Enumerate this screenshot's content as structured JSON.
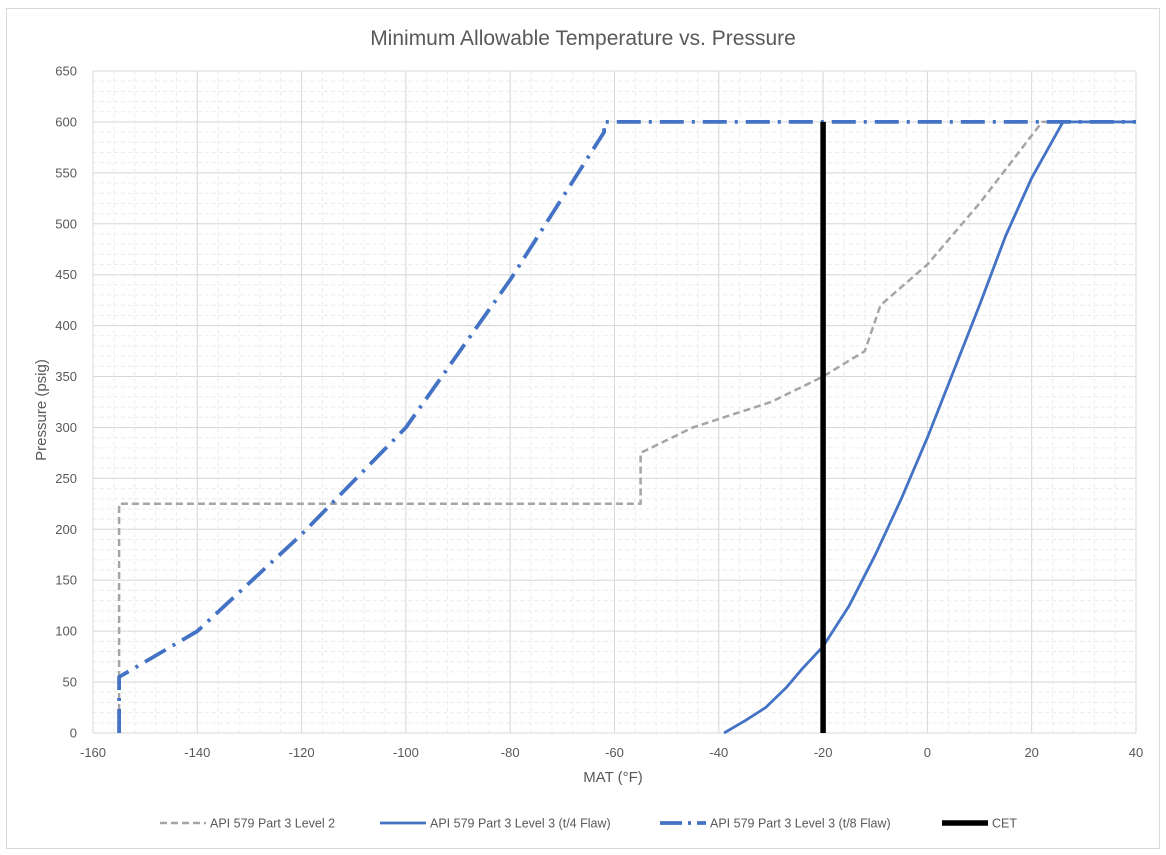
{
  "chart_data": {
    "type": "line",
    "title": "Minimum Allowable Temperature vs. Pressure",
    "xlabel": "MAT (°F)",
    "ylabel": "Pressure (psig)",
    "xlim": [
      -160,
      40
    ],
    "ylim": [
      0,
      650
    ],
    "xticks": [
      -160,
      -140,
      -120,
      -100,
      -80,
      -60,
      -40,
      -20,
      0,
      20,
      40
    ],
    "yticks": [
      0,
      50,
      100,
      150,
      200,
      250,
      300,
      350,
      400,
      450,
      500,
      550,
      600,
      650
    ],
    "grid": true,
    "legend_position": "bottom",
    "series": [
      {
        "name": "API 579 Part 3 Level 2",
        "color": "#a5a5a5",
        "style": "dashed",
        "x": [
          -155,
          -155,
          -155,
          -55,
          -55,
          -45,
          -30,
          -20,
          -12,
          -9,
          0,
          10,
          22,
          40
        ],
        "y": [
          0,
          50,
          225,
          225,
          275,
          300,
          325,
          350,
          375,
          420,
          460,
          520,
          600,
          600
        ]
      },
      {
        "name": "API 579 Part 3 Level 3 (t/4 Flaw)",
        "color": "#4472c4",
        "style": "solid",
        "x": [
          -39,
          -35,
          -31,
          -27,
          -24,
          -20,
          -15,
          -10,
          -5,
          0,
          5,
          10,
          15,
          20,
          26,
          40
        ],
        "y": [
          0,
          12,
          25,
          45,
          63,
          85,
          125,
          175,
          230,
          290,
          355,
          420,
          488,
          545,
          600,
          600
        ]
      },
      {
        "name": "API 579 Part 3 Level 3 (t/8 Flaw)",
        "color": "#4472c4",
        "style": "dashdot",
        "x": [
          -155,
          -155,
          -155,
          -140,
          -120,
          -100,
          -80,
          -62,
          -62,
          40
        ],
        "y": [
          0,
          40,
          55,
          100,
          195,
          300,
          445,
          590,
          600,
          600
        ]
      },
      {
        "name": "CET",
        "color": "#000000",
        "style": "thick",
        "x": [
          -20,
          -20
        ],
        "y": [
          0,
          600
        ]
      }
    ]
  }
}
